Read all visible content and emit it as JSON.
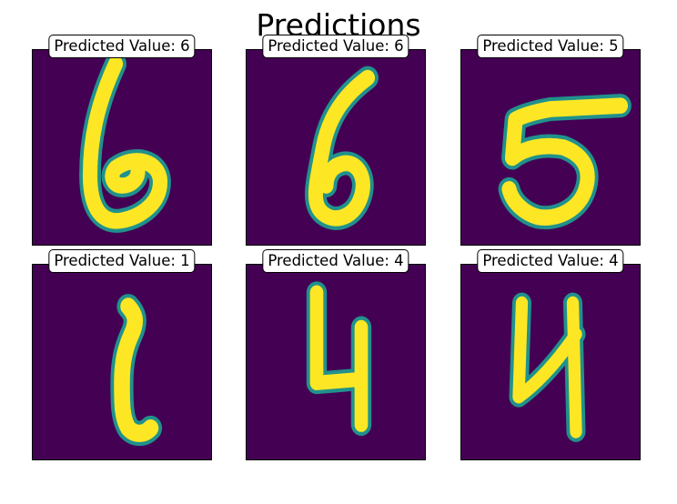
{
  "title": "Predictions",
  "colors": {
    "background": "#440154",
    "mid": "#21918c",
    "fore": "#fde725"
  },
  "chart_data": {
    "type": "image-grid",
    "title": "Predictions",
    "rows": 2,
    "cols": 3,
    "panels": [
      {
        "label": "Predicted Value: 6",
        "prediction": 6
      },
      {
        "label": "Predicted Value: 6",
        "prediction": 6
      },
      {
        "label": "Predicted Value: 5",
        "prediction": 5
      },
      {
        "label": "Predicted Value: 1",
        "prediction": 1
      },
      {
        "label": "Predicted Value: 4",
        "prediction": 4
      },
      {
        "label": "Predicted Value: 4",
        "prediction": 4
      }
    ]
  }
}
